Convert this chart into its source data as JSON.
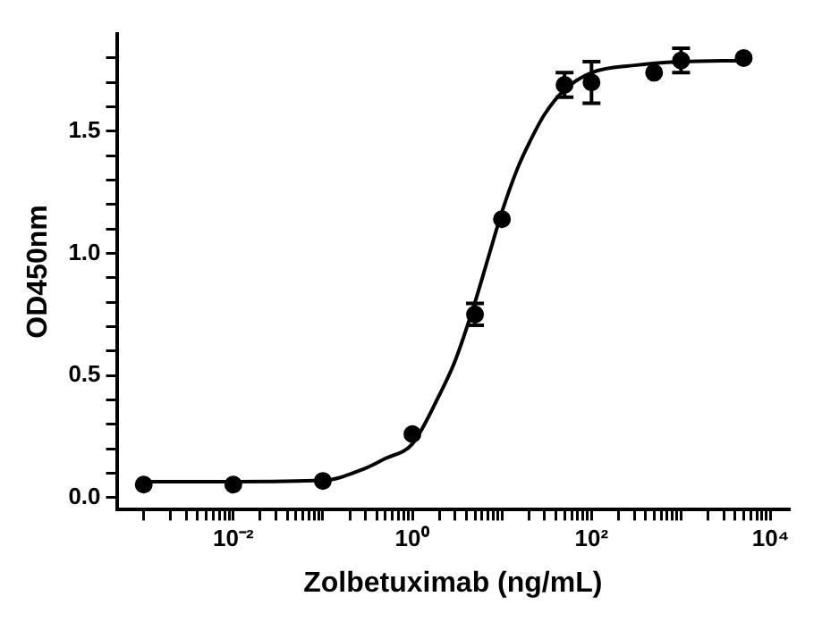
{
  "chart_data": {
    "type": "scatter",
    "xlabel": "Zolbetuximab (ng/mL)",
    "ylabel": "OD450nm",
    "log": "x",
    "grid": false,
    "legend": false,
    "marker": "circle",
    "xlim": [
      0.0005,
      16000
    ],
    "ylim": [
      -0.05,
      1.9
    ],
    "xticks": [
      {
        "value": 0.001,
        "label": null
      },
      {
        "value": 0.002,
        "label": null
      },
      {
        "value": 0.003,
        "label": null
      },
      {
        "value": 0.004,
        "label": null
      },
      {
        "value": 0.005,
        "label": null
      },
      {
        "value": 0.006,
        "label": null
      },
      {
        "value": 0.007,
        "label": null
      },
      {
        "value": 0.008,
        "label": null
      },
      {
        "value": 0.009,
        "label": null
      },
      {
        "value": 0.01,
        "label": "10⁻²"
      },
      {
        "value": 0.02,
        "label": null
      },
      {
        "value": 0.03,
        "label": null
      },
      {
        "value": 0.04,
        "label": null
      },
      {
        "value": 0.05,
        "label": null
      },
      {
        "value": 0.06,
        "label": null
      },
      {
        "value": 0.07,
        "label": null
      },
      {
        "value": 0.08,
        "label": null
      },
      {
        "value": 0.09,
        "label": null
      },
      {
        "value": 0.1,
        "label": null
      },
      {
        "value": 0.2,
        "label": null
      },
      {
        "value": 0.3,
        "label": null
      },
      {
        "value": 0.4,
        "label": null
      },
      {
        "value": 0.5,
        "label": null
      },
      {
        "value": 0.6,
        "label": null
      },
      {
        "value": 0.7,
        "label": null
      },
      {
        "value": 0.8,
        "label": null
      },
      {
        "value": 0.9,
        "label": null
      },
      {
        "value": 1,
        "label": "10⁰"
      },
      {
        "value": 2,
        "label": null
      },
      {
        "value": 3,
        "label": null
      },
      {
        "value": 4,
        "label": null
      },
      {
        "value": 5,
        "label": null
      },
      {
        "value": 6,
        "label": null
      },
      {
        "value": 7,
        "label": null
      },
      {
        "value": 8,
        "label": null
      },
      {
        "value": 9,
        "label": null
      },
      {
        "value": 10,
        "label": null
      },
      {
        "value": 20,
        "label": null
      },
      {
        "value": 30,
        "label": null
      },
      {
        "value": 40,
        "label": null
      },
      {
        "value": 50,
        "label": null
      },
      {
        "value": 60,
        "label": null
      },
      {
        "value": 70,
        "label": null
      },
      {
        "value": 80,
        "label": null
      },
      {
        "value": 90,
        "label": null
      },
      {
        "value": 100,
        "label": "10²"
      },
      {
        "value": 200,
        "label": null
      },
      {
        "value": 300,
        "label": null
      },
      {
        "value": 400,
        "label": null
      },
      {
        "value": 500,
        "label": null
      },
      {
        "value": 600,
        "label": null
      },
      {
        "value": 700,
        "label": null
      },
      {
        "value": 800,
        "label": null
      },
      {
        "value": 900,
        "label": null
      },
      {
        "value": 1000,
        "label": null
      },
      {
        "value": 2000,
        "label": null
      },
      {
        "value": 3000,
        "label": null
      },
      {
        "value": 4000,
        "label": null
      },
      {
        "value": 5000,
        "label": null
      },
      {
        "value": 6000,
        "label": null
      },
      {
        "value": 7000,
        "label": null
      },
      {
        "value": 8000,
        "label": null
      },
      {
        "value": 9000,
        "label": null
      },
      {
        "value": 10000,
        "label": "10⁴"
      }
    ],
    "yticks": [
      {
        "value": 0,
        "label": "0.0"
      },
      {
        "value": 0.1,
        "label": null
      },
      {
        "value": 0.2,
        "label": null
      },
      {
        "value": 0.3,
        "label": null
      },
      {
        "value": 0.4,
        "label": null
      },
      {
        "value": 0.5,
        "label": "0.5"
      },
      {
        "value": 0.6,
        "label": null
      },
      {
        "value": 0.7,
        "label": null
      },
      {
        "value": 0.8,
        "label": null
      },
      {
        "value": 0.9,
        "label": null
      },
      {
        "value": 1,
        "label": "1.0"
      },
      {
        "value": 1.1,
        "label": null
      },
      {
        "value": 1.2,
        "label": null
      },
      {
        "value": 1.3,
        "label": null
      },
      {
        "value": 1.4,
        "label": null
      },
      {
        "value": 1.5,
        "label": "1.5"
      },
      {
        "value": 1.6,
        "label": null
      },
      {
        "value": 1.7,
        "label": null
      },
      {
        "value": 1.8,
        "label": null
      }
    ],
    "series": [
      {
        "color": "#000000",
        "x": [
          0.001,
          0.01,
          0.1,
          1,
          5,
          10,
          50,
          100,
          500,
          1000,
          5000
        ],
        "values": [
          0.053,
          0.053,
          0.068,
          0.26,
          0.75,
          1.14,
          1.69,
          1.7,
          1.74,
          1.79,
          1.8
        ],
        "errors": [
          null,
          null,
          null,
          null,
          0.045,
          null,
          0.05,
          0.085,
          null,
          0.05,
          null
        ]
      },
      {
        "type": "line",
        "color": "#000000",
        "marker": "none",
        "x": [
          0.001,
          0.01,
          0.1,
          0.3,
          0.5,
          1,
          2,
          3,
          5,
          7,
          10,
          15,
          20,
          30,
          50,
          100,
          300,
          1000,
          5000
        ],
        "values": [
          0.065,
          0.065,
          0.07,
          0.12,
          0.16,
          0.22,
          0.42,
          0.56,
          0.8,
          0.98,
          1.17,
          1.35,
          1.45,
          1.57,
          1.67,
          1.74,
          1.77,
          1.785,
          1.79
        ]
      }
    ]
  }
}
